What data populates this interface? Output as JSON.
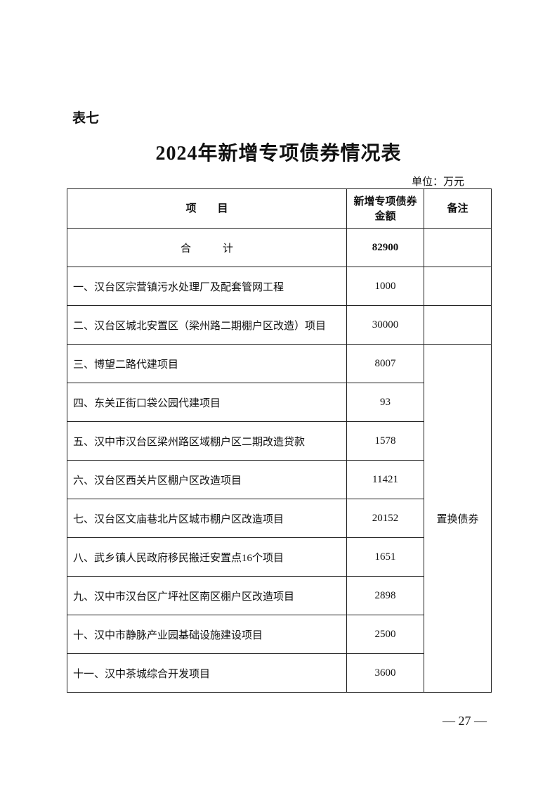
{
  "table_label": "表七",
  "title": "2024年新增专项债券情况表",
  "unit": "单位：万元",
  "table": {
    "headers": {
      "item": "项　　目",
      "amount_line1": "新增专项债券",
      "amount_line2": "金额",
      "remark": "备注"
    },
    "total": {
      "label": "合　　　计",
      "amount": "82900"
    },
    "rows": [
      {
        "item": "一、汉台区宗营镇污水处理厂及配套管网工程",
        "amount": "1000"
      },
      {
        "item": "二、汉台区城北安置区（梁州路二期棚户区改造）项目",
        "amount": "30000"
      },
      {
        "item": "三、博望二路代建项目",
        "amount": "8007"
      },
      {
        "item": "四、东关正街口袋公园代建项目",
        "amount": "93"
      },
      {
        "item": "五、汉中市汉台区梁州路区域棚户区二期改造贷款",
        "amount": "1578"
      },
      {
        "item": "六、汉台区西关片区棚户区改造项目",
        "amount": "11421"
      },
      {
        "item": "七、汉台区文庙巷北片区城市棚户区改造项目",
        "amount": "20152"
      },
      {
        "item": "八、武乡镇人民政府移民搬迁安置点16个项目",
        "amount": "1651"
      },
      {
        "item": "九、汉中市汉台区广坪社区南区棚户区改造项目",
        "amount": "2898"
      },
      {
        "item": "十、汉中市静脉产业园基础设施建设项目",
        "amount": "2500"
      },
      {
        "item": "十一、汉中茶城综合开发项目",
        "amount": "3600"
      }
    ],
    "merged_remark": "置换债券"
  },
  "page_number": "— 27 —"
}
